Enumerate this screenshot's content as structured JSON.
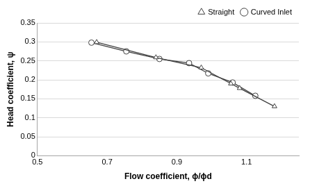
{
  "chart_data": {
    "type": "line",
    "x_label": "Flow coefficient, ϕ/ϕd",
    "y_label": "Head coefficient, ψ",
    "series": [
      {
        "name": "Straight",
        "color": "#404040",
        "marker": "triangle",
        "line_style": "solid",
        "x": [
          0.67,
          0.84,
          0.97,
          1.055,
          1.08,
          1.18
        ],
        "values": [
          0.299,
          0.259,
          0.232,
          0.19,
          0.178,
          0.13
        ]
      },
      {
        "name": "Curved Inlet",
        "color": "#404040",
        "marker": "circle",
        "line_style": "solid",
        "x": [
          0.655,
          0.755,
          0.85,
          0.935,
          0.99,
          1.06,
          1.125
        ],
        "values": [
          0.298,
          0.275,
          0.255,
          0.244,
          0.217,
          0.193,
          0.158
        ]
      }
    ],
    "xlim": [
      0.5,
      1.25
    ],
    "xticks": [
      0.5,
      0.7,
      0.9,
      1.1
    ],
    "ylim": [
      0,
      0.35
    ],
    "yticks": [
      0,
      0.05,
      0.1,
      0.15,
      0.2,
      0.25,
      0.3,
      0.35
    ],
    "grid": "y",
    "legend": "top-right"
  }
}
